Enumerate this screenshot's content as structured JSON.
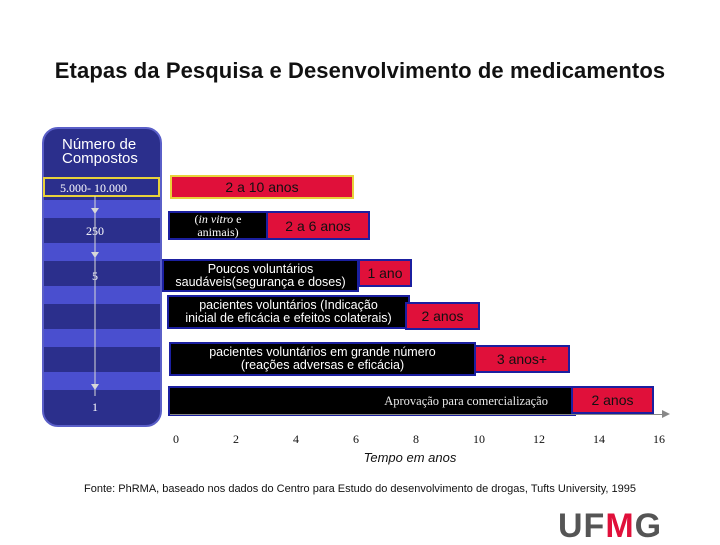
{
  "title": "Etapas da Pesquisa e Desenvolvimento de medicamentos",
  "compounds": {
    "header_line1": "Número de",
    "header_line2": "Compostos",
    "values": [
      "5.000- 10.000",
      "250",
      "5",
      "1"
    ]
  },
  "stages": [
    {
      "label": "",
      "duration": "2 a 10 anos"
    },
    {
      "label_italic": "in vitro",
      "label_rest": " e",
      "label_line2": "animais)",
      "duration": "2 a 6 anos"
    },
    {
      "label_line1": "Poucos voluntários",
      "label_line2": "saudáveis(segurança e doses)",
      "duration": "1 ano"
    },
    {
      "label_line1": "pacientes voluntários (Indicação",
      "label_line2": "inicial de eficácia e efeitos colaterais)",
      "duration": "2 anos"
    },
    {
      "label_line1": "pacientes voluntários em grande número",
      "label_line2": "(reações adversas e eficácia)",
      "duration": "3 anos+"
    },
    {
      "label_line1": "Aprovação para comercialização",
      "duration": "2 anos"
    }
  ],
  "axis": {
    "ticks": [
      "0",
      "2",
      "4",
      "6",
      "8",
      "10",
      "12",
      "14",
      "16"
    ],
    "label": "Tempo em anos"
  },
  "source": "Fonte: PhRMA, baseado nos dados do Centro para Estudo do desenvolvimento de drogas, Tufts University, 1995",
  "logo": {
    "part1": "UF",
    "part2": "M",
    "part3": "G"
  },
  "colors": {
    "column": "#2b2f8c",
    "red": "#e0103a",
    "black": "#000000"
  }
}
